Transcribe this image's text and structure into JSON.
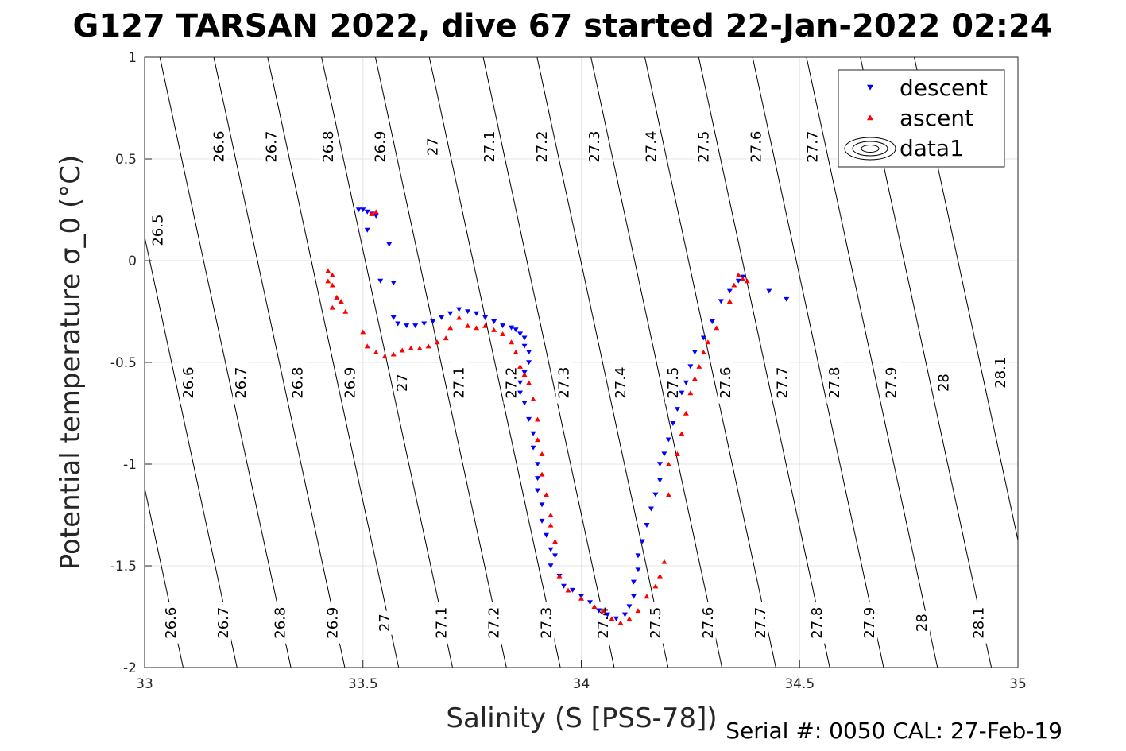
{
  "title": "G127 TARSAN 2022, dive 67 started 22-Jan-2022 02:24",
  "footer": "Serial #: 0050  CAL: 27-Feb-19",
  "colors": {
    "descent": "#0000ff",
    "ascent": "#ff0000",
    "grid": "#e6e6e6",
    "contour": "#000000"
  },
  "chart_data": {
    "type": "scatter",
    "xlabel": "Salinity (S [PSS-78])",
    "ylabel": "Potential temperature σ_0 (°C)",
    "xlim": [
      33,
      35
    ],
    "ylim": [
      -2,
      1
    ],
    "xticks": [
      33,
      33.5,
      34,
      34.5,
      35
    ],
    "xtick_labels": [
      "33",
      "33.5",
      "34",
      "34.5",
      "35"
    ],
    "yticks": [
      -2,
      -1.5,
      -1,
      -0.5,
      0,
      0.5,
      1
    ],
    "ytick_labels": [
      "-2",
      "-1.5",
      "-1",
      "-0.5",
      "0",
      "0.5",
      "1"
    ],
    "grid": true,
    "legend": {
      "position": "top-right",
      "entries": [
        "descent",
        "ascent",
        "data1"
      ]
    },
    "density_contours": [
      {
        "sigma": 26.5,
        "label": "26.5",
        "label_pos": [
          [
            33.03,
            0.15
          ]
        ]
      },
      {
        "sigma": 26.6,
        "label": "26.6",
        "label_pos": [
          [
            33.17,
            0.56
          ],
          [
            33.1,
            -0.6
          ],
          [
            33.06,
            -1.78
          ]
        ]
      },
      {
        "sigma": 26.7,
        "label": "26.7",
        "label_pos": [
          [
            33.29,
            0.56
          ],
          [
            33.22,
            -0.6
          ],
          [
            33.18,
            -1.78
          ]
        ]
      },
      {
        "sigma": 26.8,
        "label": "26.8",
        "label_pos": [
          [
            33.42,
            0.56
          ],
          [
            33.35,
            -0.6
          ],
          [
            33.31,
            -1.78
          ]
        ]
      },
      {
        "sigma": 26.9,
        "label": "26.9",
        "label_pos": [
          [
            33.54,
            0.56
          ],
          [
            33.47,
            -0.6
          ],
          [
            33.43,
            -1.78
          ]
        ]
      },
      {
        "sigma": 27.0,
        "label": "27",
        "label_pos": [
          [
            33.66,
            0.56
          ],
          [
            33.59,
            -0.6
          ],
          [
            33.55,
            -1.78
          ]
        ]
      },
      {
        "sigma": 27.1,
        "label": "27.1",
        "label_pos": [
          [
            33.79,
            0.56
          ],
          [
            33.72,
            -0.6
          ],
          [
            33.68,
            -1.78
          ]
        ]
      },
      {
        "sigma": 27.2,
        "label": "27.2",
        "label_pos": [
          [
            33.91,
            0.56
          ],
          [
            33.84,
            -0.6
          ],
          [
            33.8,
            -1.78
          ]
        ]
      },
      {
        "sigma": 27.3,
        "label": "27.3",
        "label_pos": [
          [
            34.03,
            0.56
          ],
          [
            33.96,
            -0.6
          ],
          [
            33.92,
            -1.78
          ]
        ]
      },
      {
        "sigma": 27.4,
        "label": "27.4",
        "label_pos": [
          [
            34.16,
            0.56
          ],
          [
            34.09,
            -0.6
          ],
          [
            34.05,
            -1.78
          ]
        ]
      },
      {
        "sigma": 27.5,
        "label": "27.5",
        "label_pos": [
          [
            34.28,
            0.56
          ],
          [
            34.21,
            -0.6
          ],
          [
            34.17,
            -1.78
          ]
        ]
      },
      {
        "sigma": 27.6,
        "label": "27.6",
        "label_pos": [
          [
            34.4,
            0.56
          ],
          [
            34.33,
            -0.6
          ],
          [
            34.29,
            -1.78
          ]
        ]
      },
      {
        "sigma": 27.7,
        "label": "27.7",
        "label_pos": [
          [
            34.53,
            0.56
          ],
          [
            34.46,
            -0.6
          ],
          [
            34.41,
            -1.78
          ]
        ]
      },
      {
        "sigma": 27.8,
        "label": "27.8",
        "label_pos": [
          [
            34.58,
            -0.6
          ],
          [
            34.54,
            -1.78
          ]
        ]
      },
      {
        "sigma": 27.9,
        "label": "27.9",
        "label_pos": [
          [
            34.71,
            -0.6
          ],
          [
            34.66,
            -1.78
          ]
        ]
      },
      {
        "sigma": 28.0,
        "label": "28",
        "label_pos": [
          [
            34.83,
            -0.6
          ],
          [
            34.78,
            -1.78
          ]
        ]
      },
      {
        "sigma": 28.1,
        "label": "28.1",
        "label_pos": [
          [
            34.96,
            -0.55
          ],
          [
            34.91,
            -1.78
          ]
        ]
      }
    ],
    "series": [
      {
        "name": "descent",
        "marker": "triangle-down",
        "points": [
          [
            33.49,
            0.25
          ],
          [
            33.5,
            0.25
          ],
          [
            33.51,
            0.24
          ],
          [
            33.52,
            0.23
          ],
          [
            33.53,
            0.22
          ],
          [
            33.51,
            0.15
          ],
          [
            33.56,
            0.08
          ],
          [
            33.54,
            -0.1
          ],
          [
            33.57,
            -0.11
          ],
          [
            33.57,
            -0.28
          ],
          [
            33.58,
            -0.31
          ],
          [
            33.6,
            -0.32
          ],
          [
            33.62,
            -0.32
          ],
          [
            33.64,
            -0.31
          ],
          [
            33.66,
            -0.3
          ],
          [
            33.68,
            -0.28
          ],
          [
            33.7,
            -0.26
          ],
          [
            33.72,
            -0.24
          ],
          [
            33.74,
            -0.25
          ],
          [
            33.76,
            -0.26
          ],
          [
            33.78,
            -0.28
          ],
          [
            33.8,
            -0.3
          ],
          [
            33.82,
            -0.32
          ],
          [
            33.84,
            -0.33
          ],
          [
            33.85,
            -0.34
          ],
          [
            33.86,
            -0.36
          ],
          [
            33.87,
            -0.38
          ],
          [
            33.87,
            -0.42
          ],
          [
            33.88,
            -0.45
          ],
          [
            33.88,
            -0.5
          ],
          [
            33.87,
            -0.55
          ],
          [
            33.86,
            -0.6
          ],
          [
            33.86,
            -0.65
          ],
          [
            33.87,
            -0.7
          ],
          [
            33.88,
            -0.78
          ],
          [
            33.89,
            -0.85
          ],
          [
            33.89,
            -0.92
          ],
          [
            33.9,
            -1.0
          ],
          [
            33.9,
            -1.07
          ],
          [
            33.9,
            -1.13
          ],
          [
            33.91,
            -1.2
          ],
          [
            33.91,
            -1.28
          ],
          [
            33.92,
            -1.35
          ],
          [
            33.93,
            -1.42
          ],
          [
            33.94,
            -1.45
          ],
          [
            33.93,
            -1.5
          ],
          [
            33.95,
            -1.55
          ],
          [
            33.96,
            -1.6
          ],
          [
            33.98,
            -1.62
          ],
          [
            34.0,
            -1.65
          ],
          [
            34.02,
            -1.68
          ],
          [
            34.04,
            -1.72
          ],
          [
            34.06,
            -1.74
          ],
          [
            34.08,
            -1.76
          ],
          [
            34.1,
            -1.74
          ],
          [
            34.11,
            -1.7
          ],
          [
            34.12,
            -1.65
          ],
          [
            34.12,
            -1.58
          ],
          [
            34.13,
            -1.52
          ],
          [
            34.13,
            -1.45
          ],
          [
            34.14,
            -1.38
          ],
          [
            34.15,
            -1.3
          ],
          [
            34.16,
            -1.22
          ],
          [
            34.17,
            -1.15
          ],
          [
            34.18,
            -1.08
          ],
          [
            34.18,
            -1.0
          ],
          [
            34.19,
            -0.95
          ],
          [
            34.2,
            -0.88
          ],
          [
            34.21,
            -0.8
          ],
          [
            34.22,
            -0.73
          ],
          [
            34.23,
            -0.65
          ],
          [
            34.24,
            -0.6
          ],
          [
            34.25,
            -0.52
          ],
          [
            34.26,
            -0.45
          ],
          [
            34.28,
            -0.38
          ],
          [
            34.3,
            -0.3
          ],
          [
            34.32,
            -0.2
          ],
          [
            34.34,
            -0.15
          ],
          [
            34.36,
            -0.1
          ],
          [
            34.37,
            -0.08
          ],
          [
            34.43,
            -0.15
          ],
          [
            34.47,
            -0.19
          ]
        ]
      },
      {
        "name": "ascent",
        "marker": "triangle-up",
        "points": [
          [
            33.53,
            0.24
          ],
          [
            33.52,
            0.23
          ],
          [
            33.42,
            -0.05
          ],
          [
            33.43,
            -0.07
          ],
          [
            33.42,
            -0.1
          ],
          [
            33.43,
            -0.12
          ],
          [
            33.44,
            -0.18
          ],
          [
            33.43,
            -0.23
          ],
          [
            33.45,
            -0.2
          ],
          [
            33.46,
            -0.25
          ],
          [
            33.5,
            -0.35
          ],
          [
            33.51,
            -0.42
          ],
          [
            33.53,
            -0.45
          ],
          [
            33.55,
            -0.47
          ],
          [
            33.57,
            -0.46
          ],
          [
            33.59,
            -0.44
          ],
          [
            33.61,
            -0.43
          ],
          [
            33.63,
            -0.43
          ],
          [
            33.65,
            -0.42
          ],
          [
            33.67,
            -0.4
          ],
          [
            33.69,
            -0.38
          ],
          [
            33.7,
            -0.33
          ],
          [
            33.72,
            -0.28
          ],
          [
            33.74,
            -0.32
          ],
          [
            33.76,
            -0.33
          ],
          [
            33.78,
            -0.32
          ],
          [
            33.8,
            -0.34
          ],
          [
            33.82,
            -0.36
          ],
          [
            33.84,
            -0.4
          ],
          [
            33.85,
            -0.45
          ],
          [
            33.86,
            -0.52
          ],
          [
            33.87,
            -0.56
          ],
          [
            33.88,
            -0.6
          ],
          [
            33.89,
            -0.68
          ],
          [
            33.9,
            -0.78
          ],
          [
            33.9,
            -0.88
          ],
          [
            33.91,
            -0.95
          ],
          [
            33.91,
            -1.05
          ],
          [
            33.92,
            -1.15
          ],
          [
            33.93,
            -1.25
          ],
          [
            33.93,
            -1.3
          ],
          [
            33.94,
            -1.38
          ],
          [
            33.95,
            -1.55
          ],
          [
            33.97,
            -1.62
          ],
          [
            34.0,
            -1.66
          ],
          [
            34.03,
            -1.7
          ],
          [
            34.05,
            -1.72
          ],
          [
            34.07,
            -1.76
          ],
          [
            34.09,
            -1.78
          ],
          [
            34.11,
            -1.76
          ],
          [
            34.13,
            -1.72
          ],
          [
            34.15,
            -1.65
          ],
          [
            34.17,
            -1.6
          ],
          [
            34.18,
            -1.55
          ],
          [
            34.19,
            -1.48
          ],
          [
            34.2,
            -1.15
          ],
          [
            34.2,
            -1.0
          ],
          [
            34.22,
            -0.95
          ],
          [
            34.23,
            -0.85
          ],
          [
            34.24,
            -0.75
          ],
          [
            34.25,
            -0.65
          ],
          [
            34.26,
            -0.58
          ],
          [
            34.27,
            -0.52
          ],
          [
            34.28,
            -0.45
          ],
          [
            34.29,
            -0.4
          ],
          [
            34.31,
            -0.33
          ],
          [
            34.34,
            -0.2
          ],
          [
            34.35,
            -0.12
          ],
          [
            34.36,
            -0.07
          ],
          [
            34.37,
            -0.09
          ],
          [
            34.38,
            -0.1
          ]
        ]
      }
    ]
  }
}
